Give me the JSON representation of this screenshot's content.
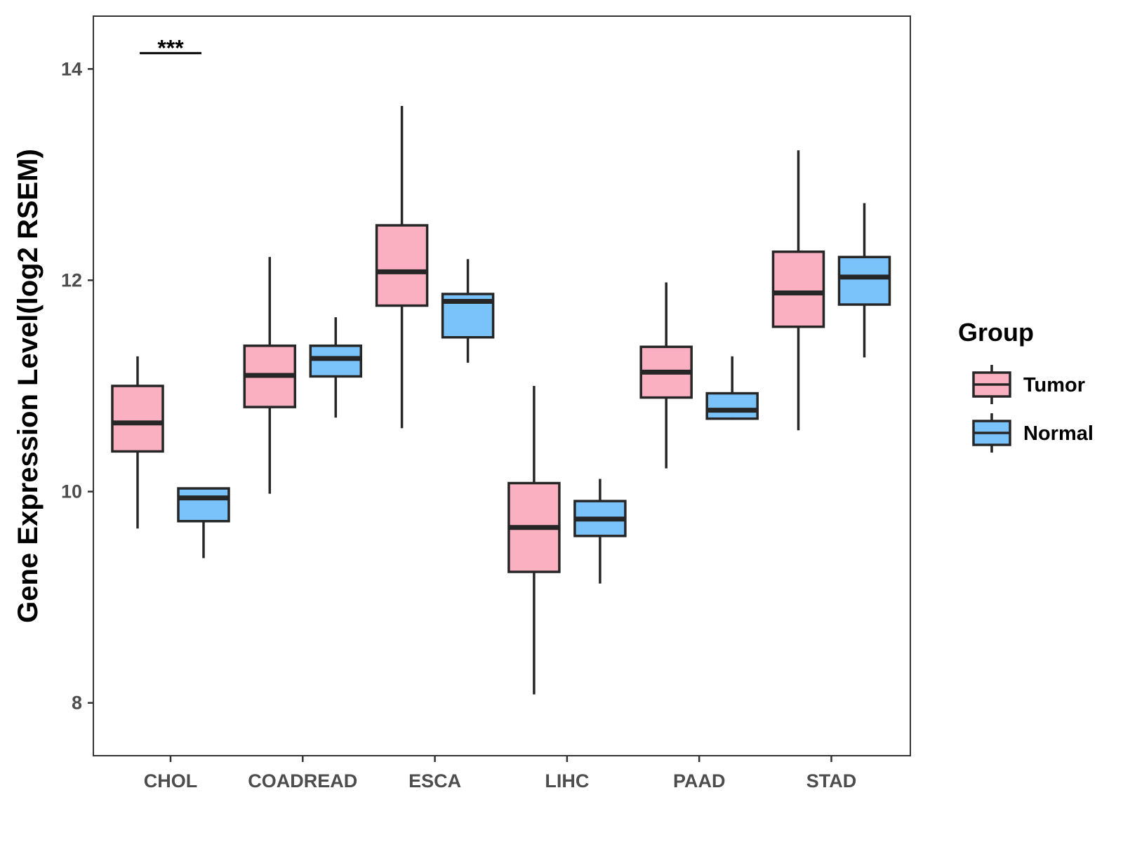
{
  "chart_data": {
    "type": "boxplot",
    "title": "",
    "xlabel": "",
    "ylabel": "Gene Expression Level(log2 RSEM)",
    "ylim": [
      7.5,
      14.5
    ],
    "yticks": [
      8,
      10,
      12,
      14
    ],
    "categories": [
      "CHOL",
      "COADREAD",
      "ESCA",
      "LIHC",
      "PAAD",
      "STAD"
    ],
    "legend": {
      "title": "Group",
      "position": "right"
    },
    "grid": false,
    "series": [
      {
        "name": "Tumor",
        "color": "#fbb0c2",
        "boxes": [
          {
            "category": "CHOL",
            "whisker_low": 9.65,
            "q1": 10.38,
            "median": 10.65,
            "q3": 11.0,
            "whisker_high": 11.28
          },
          {
            "category": "COADREAD",
            "whisker_low": 9.98,
            "q1": 10.8,
            "median": 11.1,
            "q3": 11.38,
            "whisker_high": 12.22
          },
          {
            "category": "ESCA",
            "whisker_low": 10.6,
            "q1": 11.76,
            "median": 12.08,
            "q3": 12.52,
            "whisker_high": 13.65
          },
          {
            "category": "LIHC",
            "whisker_low": 8.08,
            "q1": 9.24,
            "median": 9.66,
            "q3": 10.08,
            "whisker_high": 11.0
          },
          {
            "category": "PAAD",
            "whisker_low": 10.22,
            "q1": 10.89,
            "median": 11.13,
            "q3": 11.37,
            "whisker_high": 11.98
          },
          {
            "category": "STAD",
            "whisker_low": 10.58,
            "q1": 11.56,
            "median": 11.88,
            "q3": 12.27,
            "whisker_high": 13.23
          }
        ]
      },
      {
        "name": "Normal",
        "color": "#7ac3fa",
        "boxes": [
          {
            "category": "CHOL",
            "whisker_low": 9.37,
            "q1": 9.72,
            "median": 9.94,
            "q3": 10.03,
            "whisker_high": 10.03
          },
          {
            "category": "COADREAD",
            "whisker_low": 10.7,
            "q1": 11.09,
            "median": 11.26,
            "q3": 11.38,
            "whisker_high": 11.65
          },
          {
            "category": "ESCA",
            "whisker_low": 11.22,
            "q1": 11.46,
            "median": 11.8,
            "q3": 11.87,
            "whisker_high": 12.2
          },
          {
            "category": "LIHC",
            "whisker_low": 9.13,
            "q1": 9.58,
            "median": 9.74,
            "q3": 9.91,
            "whisker_high": 10.12
          },
          {
            "category": "PAAD",
            "whisker_low": 10.68,
            "q1": 10.69,
            "median": 10.77,
            "q3": 10.93,
            "whisker_high": 11.28
          },
          {
            "category": "STAD",
            "whisker_low": 11.27,
            "q1": 11.77,
            "median": 12.03,
            "q3": 12.22,
            "whisker_high": 12.73
          }
        ]
      }
    ],
    "annotations": [
      {
        "category": "CHOL",
        "text": "***",
        "y": 14.15
      }
    ]
  }
}
